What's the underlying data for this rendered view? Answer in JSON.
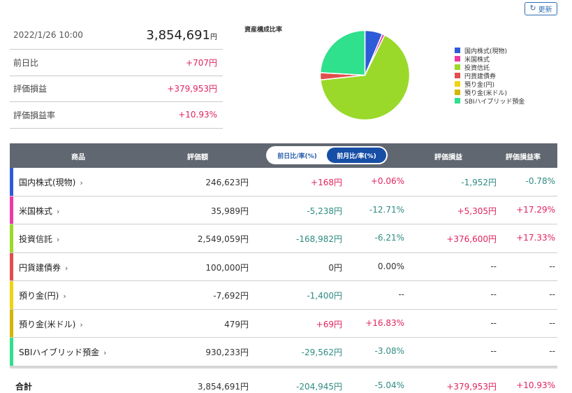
{
  "refresh_button": {
    "label": "更新",
    "icon": "refresh-icon"
  },
  "summary": {
    "datetime": "2022/1/26 10:00",
    "total_value": "3,854,691",
    "total_unit": "円",
    "rows": [
      {
        "label": "前日比",
        "value": "+707円"
      },
      {
        "label": "評価損益",
        "value": "+379,953円"
      },
      {
        "label": "評価損益率",
        "value": "+10.93%"
      }
    ]
  },
  "allocation": {
    "title": "資産構成比率",
    "legend": [
      {
        "label": "国内株式(現物)",
        "color": "#2e5bd8",
        "value": 246623
      },
      {
        "label": "米国株式",
        "color": "#ee3aa4",
        "value": 35989
      },
      {
        "label": "投資信託",
        "color": "#9ad92a",
        "value": 2549059
      },
      {
        "label": "円貨建債券",
        "color": "#e24d4d",
        "value": 100000
      },
      {
        "label": "預り金(円)",
        "color": "#f1d311",
        "value": 0
      },
      {
        "label": "預り金(米ドル)",
        "color": "#d4b500",
        "value": 479
      },
      {
        "label": "SBIハイブリッド預金",
        "color": "#2fe08c",
        "value": 930233
      }
    ]
  },
  "table": {
    "headers": {
      "product": "商品",
      "value": "評価額",
      "pl": "評価損益",
      "pl_rate": "評価損益率"
    },
    "toggle": {
      "option1": "前日比/率(%)",
      "option2": "前月比/率(%)",
      "active": "option2"
    },
    "rows": [
      {
        "name": "国内株式(現物)",
        "color": "#2e5bd8",
        "value": "246,623円",
        "diff": "+168円",
        "diff_rate": "+0.06%",
        "pl": "-1,952円",
        "pl_rate": "-0.78%"
      },
      {
        "name": "米国株式",
        "color": "#ee3aa4",
        "value": "35,989円",
        "diff": "-5,238円",
        "diff_rate": "-12.71%",
        "pl": "+5,305円",
        "pl_rate": "+17.29%"
      },
      {
        "name": "投資信託",
        "color": "#9ad92a",
        "value": "2,549,059円",
        "diff": "-168,982円",
        "diff_rate": "-6.21%",
        "pl": "+376,600円",
        "pl_rate": "+17.33%"
      },
      {
        "name": "円貨建債券",
        "color": "#e24d4d",
        "value": "100,000円",
        "diff": "0円",
        "diff_rate": "0.00%",
        "pl": "--",
        "pl_rate": "--"
      },
      {
        "name": "預り金(円)",
        "color": "#f1d311",
        "value": "-7,692円",
        "diff": "-1,400円",
        "diff_rate": "--",
        "pl": "--",
        "pl_rate": "--"
      },
      {
        "name": "預り金(米ドル)",
        "color": "#d4b500",
        "value": "479円",
        "diff": "+69円",
        "diff_rate": "+16.83%",
        "pl": "--",
        "pl_rate": "--"
      },
      {
        "name": "SBIハイブリッド預金",
        "color": "#2fe08c",
        "value": "930,233円",
        "diff": "-29,562円",
        "diff_rate": "-3.08%",
        "pl": "--",
        "pl_rate": "--"
      }
    ],
    "total": {
      "label": "合計",
      "value": "3,854,691円",
      "diff": "-204,945円",
      "diff_rate": "-5.04%",
      "pl": "+379,953円",
      "pl_rate": "+10.93%"
    }
  }
}
